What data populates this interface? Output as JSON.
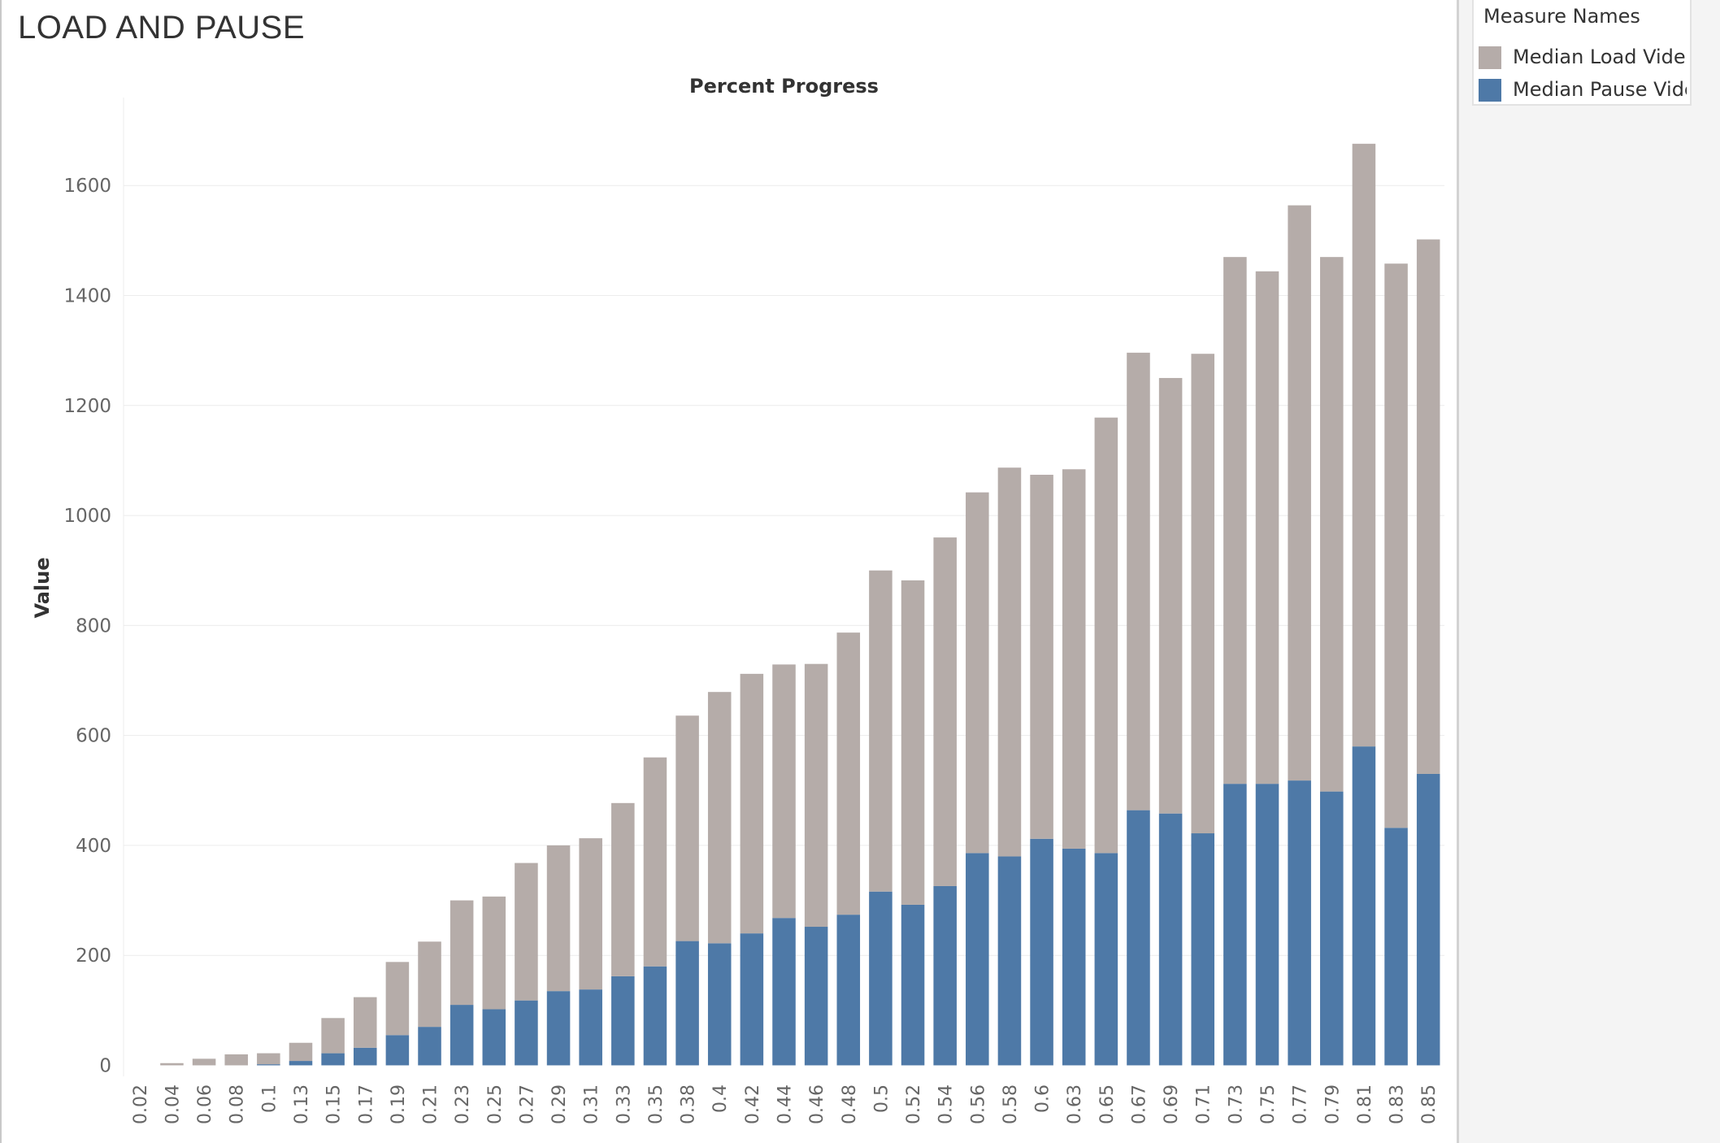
{
  "title": "LOAD AND PAUSE",
  "legend": {
    "title": "Measure Names",
    "items": [
      {
        "label": "Median Load Video Action",
        "color": "#b5aca9"
      },
      {
        "label": "Median Pause Video Action",
        "color": "#4e79a7"
      }
    ]
  },
  "chart_data": {
    "type": "bar",
    "stacked": true,
    "title": "Percent Progress",
    "xlabel": "",
    "ylabel": "Value",
    "ylim": [
      -20,
      1760
    ],
    "yticks": [
      0,
      200,
      400,
      600,
      800,
      1000,
      1200,
      1400,
      1600
    ],
    "grid": true,
    "legend_position": "right",
    "categories": [
      "0.02",
      "0.04",
      "0.06",
      "0.08",
      "0.1",
      "0.13",
      "0.15",
      "0.17",
      "0.19",
      "0.21",
      "0.23",
      "0.25",
      "0.27",
      "0.29",
      "0.31",
      "0.33",
      "0.35",
      "0.38",
      "0.4",
      "0.42",
      "0.44",
      "0.46",
      "0.48",
      "0.5",
      "0.52",
      "0.54",
      "0.56",
      "0.58",
      "0.6",
      "0.63",
      "0.65",
      "0.67",
      "0.69",
      "0.71",
      "0.73",
      "0.75",
      "0.77",
      "0.79",
      "0.81",
      "0.83",
      "0.85"
    ],
    "series": [
      {
        "name": "Median Pause Video Action",
        "color": "#4e79a7",
        "values": [
          0,
          0,
          0,
          0,
          2,
          8,
          22,
          32,
          55,
          70,
          110,
          102,
          118,
          135,
          138,
          162,
          180,
          226,
          222,
          240,
          268,
          252,
          274,
          316,
          292,
          326,
          386,
          380,
          412,
          394,
          386,
          464,
          458,
          422,
          512,
          512,
          518,
          498,
          580,
          432,
          530
        ]
      },
      {
        "name": "Median Load Video Action",
        "color": "#b5aca9",
        "values": [
          0,
          4,
          12,
          20,
          20,
          33,
          64,
          92,
          133,
          155,
          190,
          205,
          250,
          265,
          275,
          315,
          380,
          410,
          457,
          472,
          461,
          478,
          513,
          584,
          590,
          634,
          656,
          707,
          662,
          690,
          792,
          832,
          792,
          872,
          958,
          932,
          1046,
          972,
          1096,
          1026,
          972
        ]
      }
    ]
  }
}
